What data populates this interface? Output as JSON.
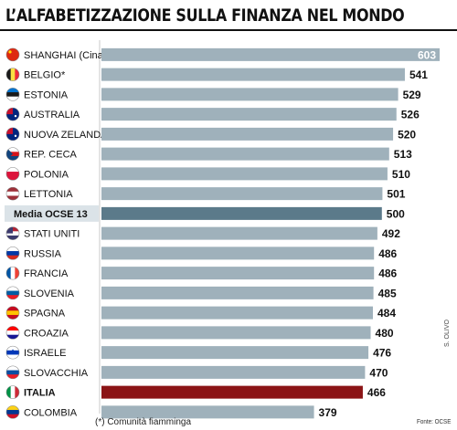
{
  "header": {
    "title": "L’ALFABETIZZAZIONE SULLA FINANZA NEL MONDO"
  },
  "notes": {
    "footnote": "(*) Comunità fiamminga",
    "source": "Fonte: OCSE",
    "credit": "S. OLIVO"
  },
  "colors": {
    "bar_default": "#9fb1bb",
    "bar_average": "#5b7a8a",
    "bar_highlight": "#8b1416",
    "row_average_bg": "#dbe3e8",
    "top_value_label": "#ffffff"
  },
  "chart_data": {
    "type": "bar",
    "orientation": "horizontal",
    "title": "L’ALFABETIZZAZIONE SULLA FINANZA NEL MONDO",
    "xlabel": "",
    "ylabel": "",
    "grid": false,
    "xlim": [
      0,
      603
    ],
    "categories": [
      "SHANGHAI (Cina)",
      "BELGIO*",
      "ESTONIA",
      "AUSTRALIA",
      "NUOVA ZELANDA",
      "REP. CECA",
      "POLONIA",
      "LETTONIA",
      "Media OCSE 13",
      "STATI UNITI",
      "RUSSIA",
      "FRANCIA",
      "SLOVENIA",
      "SPAGNA",
      "CROAZIA",
      "ISRAELE",
      "SLOVACCHIA",
      "ITALIA",
      "COLOMBIA"
    ],
    "values": [
      603,
      541,
      529,
      526,
      520,
      513,
      510,
      501,
      500,
      492,
      486,
      486,
      485,
      484,
      480,
      476,
      470,
      466,
      379
    ],
    "highlight": {
      "average": "Media OCSE 13",
      "focus": "ITALIA"
    }
  },
  "flags": [
    {
      "icon": "china-flag-icon",
      "colors": [
        "#de2910",
        "#de2910",
        "#de2910"
      ],
      "dir": "h"
    },
    {
      "icon": "belgium-flag-icon",
      "colors": [
        "#1a1a1a",
        "#fae042",
        "#ed2939"
      ],
      "dir": "v"
    },
    {
      "icon": "estonia-flag-icon",
      "colors": [
        "#0072ce",
        "#1a1a1a",
        "#ffffff"
      ],
      "dir": "h"
    },
    {
      "icon": "australia-flag-icon",
      "colors": [
        "#00247d",
        "#00247d",
        "#00247d"
      ],
      "dir": "h"
    },
    {
      "icon": "new-zealand-flag-icon",
      "colors": [
        "#00247d",
        "#00247d",
        "#00247d"
      ],
      "dir": "h"
    },
    {
      "icon": "czech-flag-icon",
      "colors": [
        "#ffffff",
        "#d7141a",
        "#11457e"
      ],
      "dir": "h"
    },
    {
      "icon": "poland-flag-icon",
      "colors": [
        "#ffffff",
        "#dc143c",
        "#dc143c"
      ],
      "dir": "h"
    },
    {
      "icon": "latvia-flag-icon",
      "colors": [
        "#9e3039",
        "#ffffff",
        "#9e3039"
      ],
      "dir": "h"
    },
    {
      "icon": "",
      "colors": [],
      "dir": "h"
    },
    {
      "icon": "usa-flag-icon",
      "colors": [
        "#b22234",
        "#ffffff",
        "#3c3b6e"
      ],
      "dir": "h"
    },
    {
      "icon": "russia-flag-icon",
      "colors": [
        "#ffffff",
        "#0039a6",
        "#d52b1e"
      ],
      "dir": "h"
    },
    {
      "icon": "france-flag-icon",
      "colors": [
        "#0055a4",
        "#ffffff",
        "#ef4135"
      ],
      "dir": "v"
    },
    {
      "icon": "slovenia-flag-icon",
      "colors": [
        "#ffffff",
        "#005da4",
        "#ed1c24"
      ],
      "dir": "h"
    },
    {
      "icon": "spain-flag-icon",
      "colors": [
        "#c60b1e",
        "#ffc400",
        "#c60b1e"
      ],
      "dir": "h"
    },
    {
      "icon": "croatia-flag-icon",
      "colors": [
        "#ff0000",
        "#ffffff",
        "#171796"
      ],
      "dir": "h"
    },
    {
      "icon": "israel-flag-icon",
      "colors": [
        "#ffffff",
        "#0038b8",
        "#ffffff"
      ],
      "dir": "h"
    },
    {
      "icon": "slovakia-flag-icon",
      "colors": [
        "#ffffff",
        "#0b4ea2",
        "#ee1c25"
      ],
      "dir": "h"
    },
    {
      "icon": "italy-flag-icon",
      "colors": [
        "#009246",
        "#ffffff",
        "#ce2b37"
      ],
      "dir": "v"
    },
    {
      "icon": "colombia-flag-icon",
      "colors": [
        "#fcd116",
        "#003893",
        "#ce1126"
      ],
      "dir": "h"
    }
  ]
}
